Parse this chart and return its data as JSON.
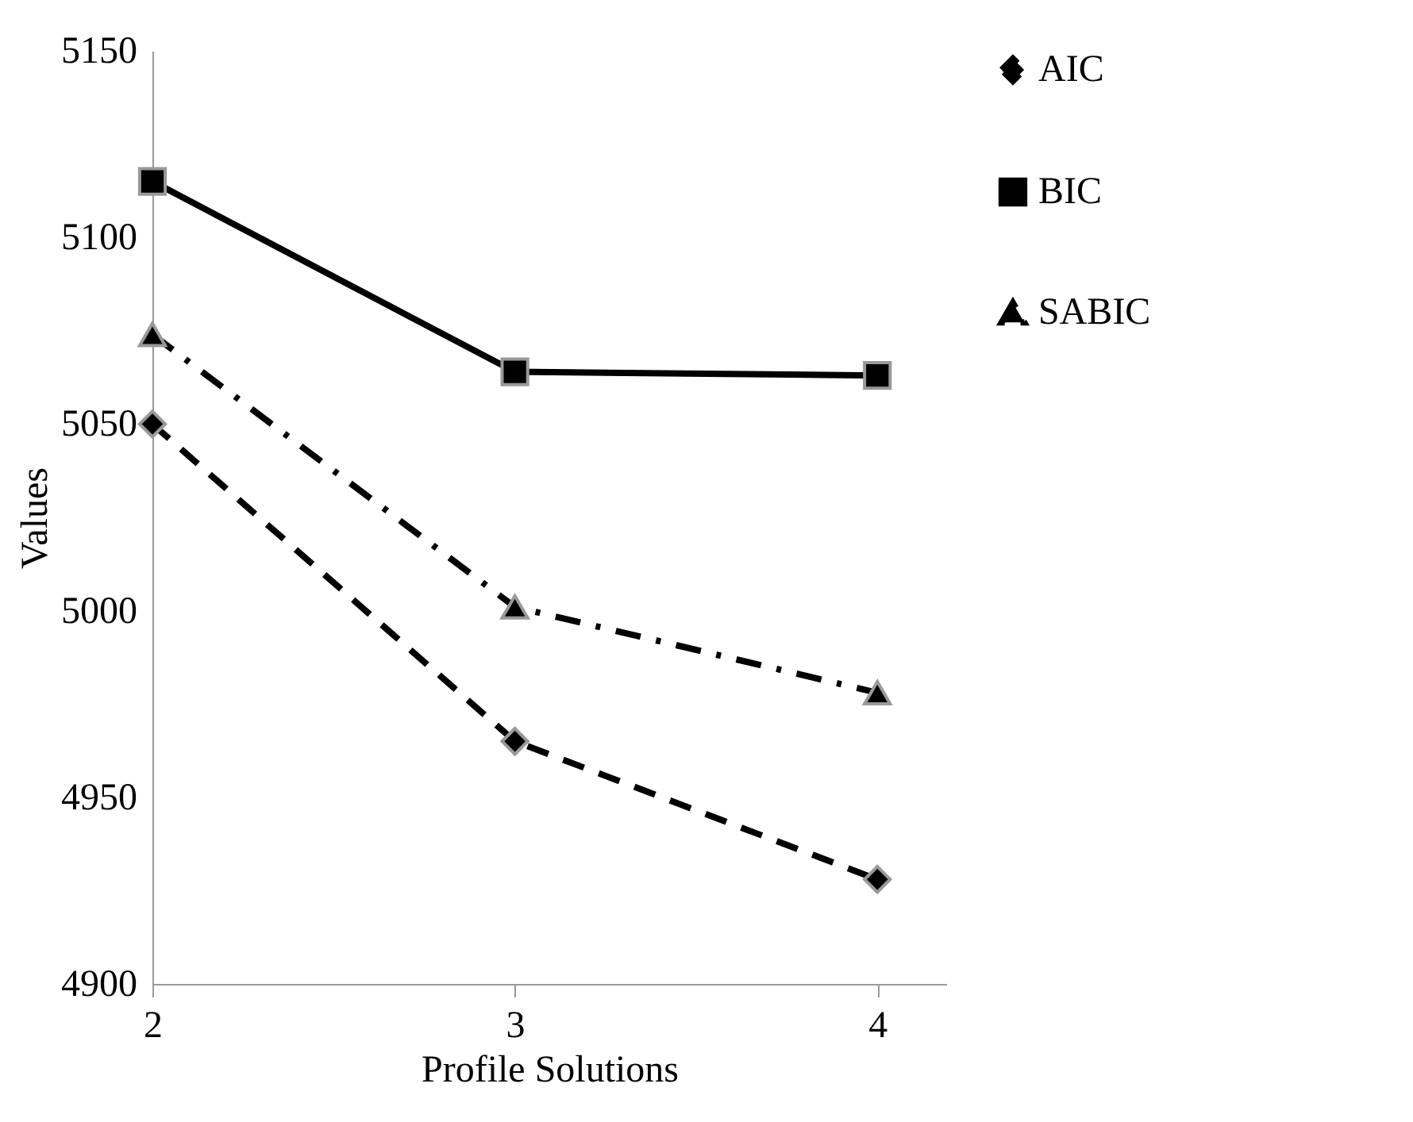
{
  "chart_data": {
    "type": "line",
    "xlabel": "Profile Solutions",
    "ylabel": "Values",
    "x": [
      2,
      3,
      4
    ],
    "xlim": [
      2,
      4.19
    ],
    "xticks": [
      2,
      3,
      4
    ],
    "ylim": [
      4900,
      5150
    ],
    "yticks": [
      4900,
      4950,
      5000,
      5050,
      5100,
      5150
    ],
    "grid": false,
    "legend": "top right",
    "series": [
      {
        "name": "AIC",
        "color": "#000000",
        "values": [
          5050,
          4965,
          4928
        ],
        "marker": "diamond",
        "line_style": "dashed"
      },
      {
        "name": "BIC",
        "color": "#000000",
        "values": [
          5115,
          5064,
          5063
        ],
        "marker": "square",
        "line_style": "solid"
      },
      {
        "name": "SABIC",
        "color": "#000000",
        "values": [
          5074,
          5001,
          4978
        ],
        "marker": "triangle",
        "line_style": "dotted"
      }
    ]
  }
}
